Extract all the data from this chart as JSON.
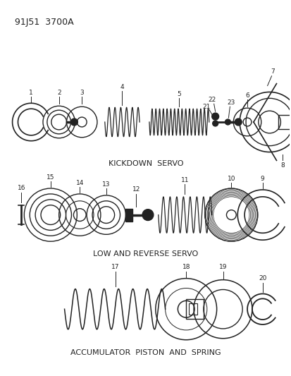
{
  "bg_color": "#ffffff",
  "line_color": "#222222",
  "header": "91J51  3700A",
  "kickdown_label": "KICKDOWN  SERVO",
  "lowrev_label": "LOW AND REVERSE SERVO",
  "accum_label": "ACCUMULATOR  PISTON  AND  SPRING",
  "fig_w": 4.14,
  "fig_h": 5.33,
  "dpi": 100
}
